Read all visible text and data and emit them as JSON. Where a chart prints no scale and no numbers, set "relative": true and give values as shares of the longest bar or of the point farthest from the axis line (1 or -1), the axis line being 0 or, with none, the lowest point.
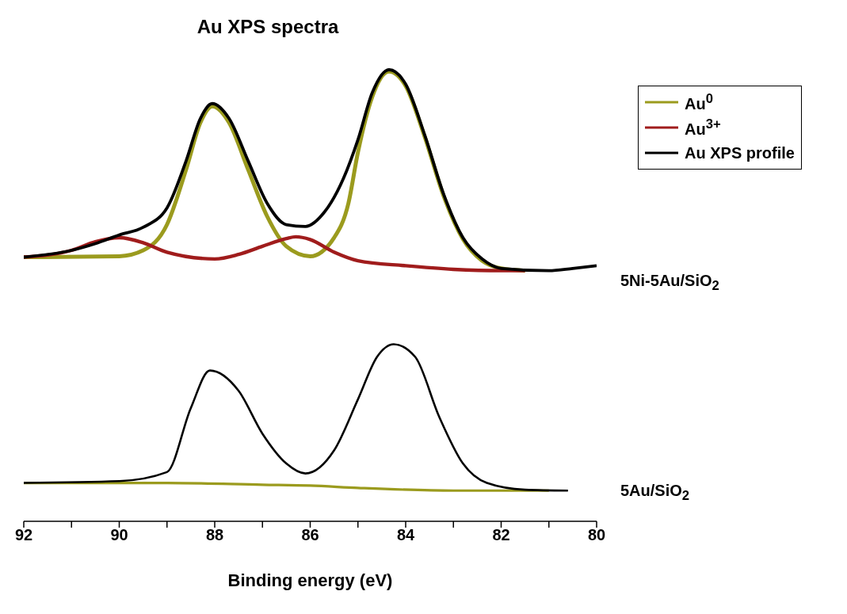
{
  "chart_data": {
    "type": "line",
    "title": "Au XPS spectra",
    "xlabel": "Binding energy (eV)",
    "relative": true,
    "xlim": [
      92,
      80
    ],
    "xticks": [
      92,
      {
        "value": 91,
        "label": null
      },
      90,
      {
        "value": 89,
        "label": null
      },
      88,
      {
        "value": 87,
        "label": null
      },
      86,
      {
        "value": 85,
        "label": null
      },
      84,
      {
        "value": 83,
        "label": null
      },
      82,
      {
        "value": 81,
        "label": null
      },
      80
    ],
    "legend": "top right",
    "annotations": [
      "5Ni-5Au/SiO$_{2}$",
      "5Au/SiO$_{2}$"
    ],
    "series": [
      {
        "name": "Au$^{0}$",
        "color": "#9b9b1e",
        "x": [
          92,
          90,
          89.5,
          89,
          88.6,
          88.3,
          88.05,
          87.7,
          87.3,
          86.9,
          86.5,
          86,
          85.5,
          85.2,
          85,
          84.7,
          84.35,
          84,
          83.6,
          83.2,
          82.8,
          82.4,
          82,
          81.5
        ],
        "values": [
          0.585,
          0.587,
          0.6,
          0.657,
          0.779,
          0.883,
          0.919,
          0.883,
          0.779,
          0.675,
          0.609,
          0.587,
          0.628,
          0.704,
          0.817,
          0.94,
          0.996,
          0.964,
          0.851,
          0.719,
          0.625,
          0.577,
          0.56,
          0.555
        ]
      },
      {
        "name": "Au$^{3+}$",
        "color": "#a01c1c",
        "x": [
          92,
          91,
          90.5,
          90,
          89.5,
          89,
          88,
          87.5,
          87,
          86.5,
          86.3,
          86,
          85.5,
          85,
          84,
          83,
          82,
          81.5
        ],
        "values": [
          0.585,
          0.6,
          0.619,
          0.628,
          0.617,
          0.596,
          0.581,
          0.591,
          0.609,
          0.626,
          0.63,
          0.624,
          0.596,
          0.577,
          0.566,
          0.558,
          0.555,
          0.555
        ]
      },
      {
        "name": "Au XPS profile",
        "color": "#000000",
        "x": [
          92,
          91,
          90.5,
          90,
          89.5,
          89,
          88.6,
          88.3,
          88.05,
          87.7,
          87.3,
          86.9,
          86.5,
          86.1,
          85.7,
          85.3,
          85,
          84.7,
          84.35,
          84,
          83.6,
          83.2,
          82.8,
          82.4,
          82,
          81,
          80.5,
          80
        ],
        "values": [
          0.585,
          0.6,
          0.615,
          0.634,
          0.651,
          0.694,
          0.798,
          0.892,
          0.925,
          0.892,
          0.798,
          0.704,
          0.657,
          0.653,
          0.685,
          0.76,
          0.845,
          0.949,
          1,
          0.968,
          0.855,
          0.723,
          0.628,
          0.581,
          0.56,
          0.555,
          0.56,
          0.566
        ]
      },
      {
        "color": "#9b9b1e",
        "x": [
          92,
          89,
          87,
          86,
          85,
          83,
          82,
          81
        ],
        "values": [
          0.085,
          0.085,
          0.081,
          0.079,
          0.074,
          0.068,
          0.068,
          0.068
        ]
      },
      {
        "color": "#000000",
        "x": [
          92,
          90,
          89,
          88.5,
          88.1,
          87.5,
          87,
          86.5,
          86.1,
          85.5,
          85,
          84.6,
          84.25,
          83.8,
          83.3,
          82.8,
          82.3,
          81.5,
          80.6
        ],
        "values": [
          0.085,
          0.089,
          0.109,
          0.251,
          0.334,
          0.289,
          0.194,
          0.128,
          0.106,
          0.157,
          0.27,
          0.364,
          0.392,
          0.364,
          0.232,
          0.128,
          0.085,
          0.07,
          0.068
        ]
      }
    ]
  }
}
